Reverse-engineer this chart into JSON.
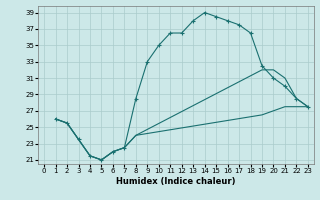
{
  "xlabel": "Humidex (Indice chaleur)",
  "xlim_min": -0.5,
  "xlim_max": 23.5,
  "ylim_min": 20.5,
  "ylim_max": 39.8,
  "xticks": [
    0,
    1,
    2,
    3,
    4,
    5,
    6,
    7,
    8,
    9,
    10,
    11,
    12,
    13,
    14,
    15,
    16,
    17,
    18,
    19,
    20,
    21,
    22,
    23
  ],
  "yticks": [
    21,
    23,
    25,
    27,
    29,
    31,
    33,
    35,
    37,
    39
  ],
  "bg_color": "#cce8e8",
  "line_color": "#1a7070",
  "grid_color": "#aacccc",
  "line1_x": [
    1,
    2,
    3,
    4,
    5,
    6,
    7,
    8,
    9,
    10,
    11,
    12,
    13,
    14,
    15,
    16,
    17,
    18,
    19,
    20,
    21,
    22,
    23
  ],
  "line1_y": [
    26,
    25.5,
    23.5,
    21.5,
    21,
    22,
    22.5,
    28.5,
    33,
    35,
    36.5,
    36.5,
    38,
    39,
    38.5,
    38,
    37.5,
    36.5,
    32.5,
    31,
    30,
    28.5,
    27.5
  ],
  "line2_x": [
    1,
    2,
    3,
    4,
    5,
    6,
    7,
    8,
    19,
    20,
    21,
    22,
    23
  ],
  "line2_y": [
    26,
    25.5,
    23.5,
    21.5,
    21,
    22,
    22.5,
    24,
    32,
    32,
    31,
    28.5,
    27.5
  ],
  "line3_x": [
    1,
    2,
    3,
    4,
    5,
    6,
    7,
    8,
    19,
    20,
    21,
    22,
    23
  ],
  "line3_y": [
    26,
    25.5,
    23.5,
    21.5,
    21,
    22,
    22.5,
    24,
    26.5,
    27,
    27.5,
    27.5,
    27.5
  ]
}
